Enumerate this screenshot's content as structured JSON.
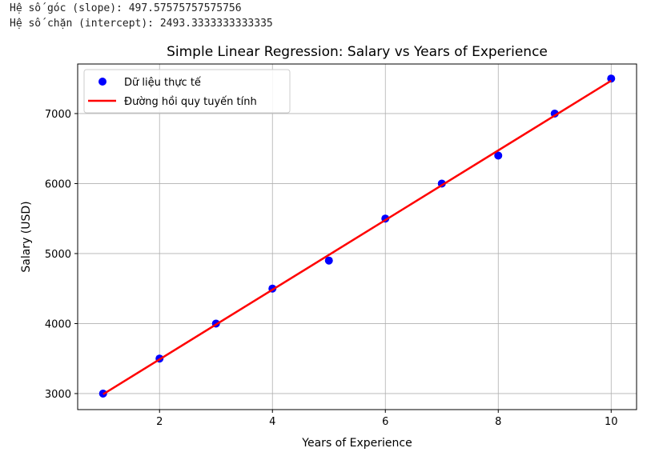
{
  "output": {
    "slope_line": "Hệ số góc (slope): 497.57575757575756",
    "intercept_line": "Hệ số chặn (intercept): 2493.3333333333335"
  },
  "chart_data": {
    "type": "scatter",
    "title": "Simple Linear Regression: Salary vs Years of Experience",
    "xlabel": "Years of Experience",
    "ylabel": "Salary (USD)",
    "xlim": [
      0.55,
      10.45
    ],
    "ylim": [
      2771,
      7708
    ],
    "xticks": [
      2,
      4,
      6,
      8,
      10
    ],
    "yticks": [
      3000,
      4000,
      5000,
      6000,
      7000
    ],
    "grid": true,
    "legend_placement": "top-left",
    "series": [
      {
        "name": "Dữ liệu thực tế",
        "kind": "scatter",
        "color": "#0000ff",
        "x": [
          1,
          2,
          3,
          4,
          5,
          6,
          7,
          8,
          9,
          10
        ],
        "y": [
          3000,
          3500,
          4000,
          4500,
          4900,
          5500,
          6000,
          6400,
          7000,
          7500
        ]
      },
      {
        "name": "Đường hồi quy tuyến tính",
        "kind": "line",
        "color": "#ff0000",
        "slope": 497.57575757575756,
        "intercept": 2493.3333333333335,
        "x": [
          1,
          2,
          3,
          4,
          5,
          6,
          7,
          8,
          9,
          10
        ]
      }
    ]
  }
}
